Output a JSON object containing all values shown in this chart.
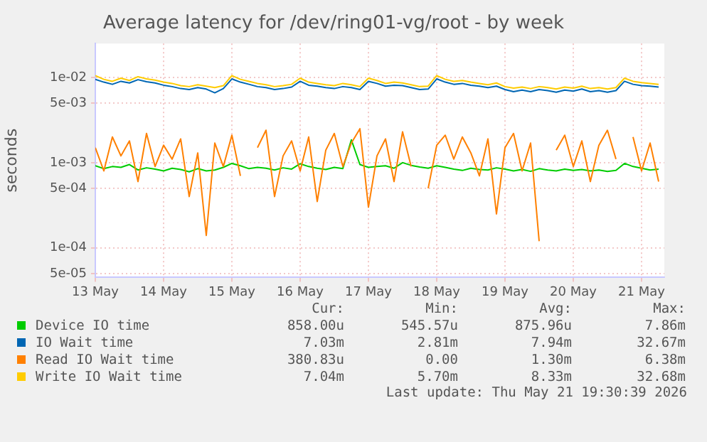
{
  "chart_data": {
    "type": "line",
    "title": "Average latency for /dev/ring01-vg/root - by week",
    "ylabel": "seconds",
    "x": [
      "2026-05-13T00:00",
      "2026-05-13T03:00",
      "2026-05-13T06:00",
      "2026-05-13T09:00",
      "2026-05-13T12:00",
      "2026-05-13T15:00",
      "2026-05-13T18:00",
      "2026-05-13T21:00",
      "2026-05-14T00:00",
      "2026-05-14T03:00",
      "2026-05-14T06:00",
      "2026-05-14T09:00",
      "2026-05-14T12:00",
      "2026-05-14T15:00",
      "2026-05-14T18:00",
      "2026-05-14T21:00",
      "2026-05-15T00:00",
      "2026-05-15T03:00",
      "2026-05-15T06:00",
      "2026-05-15T09:00",
      "2026-05-15T12:00",
      "2026-05-15T15:00",
      "2026-05-15T18:00",
      "2026-05-15T21:00",
      "2026-05-16T00:00",
      "2026-05-16T03:00",
      "2026-05-16T06:00",
      "2026-05-16T09:00",
      "2026-05-16T12:00",
      "2026-05-16T15:00",
      "2026-05-16T18:00",
      "2026-05-16T21:00",
      "2026-05-17T00:00",
      "2026-05-17T03:00",
      "2026-05-17T06:00",
      "2026-05-17T09:00",
      "2026-05-17T12:00",
      "2026-05-17T15:00",
      "2026-05-17T18:00",
      "2026-05-17T21:00",
      "2026-05-18T00:00",
      "2026-05-18T03:00",
      "2026-05-18T06:00",
      "2026-05-18T09:00",
      "2026-05-18T12:00",
      "2026-05-18T15:00",
      "2026-05-18T18:00",
      "2026-05-18T21:00",
      "2026-05-19T00:00",
      "2026-05-19T03:00",
      "2026-05-19T06:00",
      "2026-05-19T09:00",
      "2026-05-19T12:00",
      "2026-05-19T15:00",
      "2026-05-19T18:00",
      "2026-05-19T21:00",
      "2026-05-20T00:00",
      "2026-05-20T03:00",
      "2026-05-20T06:00",
      "2026-05-20T09:00",
      "2026-05-20T12:00",
      "2026-05-20T15:00",
      "2026-05-20T18:00",
      "2026-05-20T21:00",
      "2026-05-21T00:00",
      "2026-05-21T03:00",
      "2026-05-21T06:00"
    ],
    "xlim": [
      "2026-05-13T00:00",
      "2026-05-21T08:00"
    ],
    "xticks": [
      {
        "value": "2026-05-13",
        "label": "13 May"
      },
      {
        "value": "2026-05-14",
        "label": "14 May"
      },
      {
        "value": "2026-05-15",
        "label": "15 May"
      },
      {
        "value": "2026-05-16",
        "label": "16 May"
      },
      {
        "value": "2026-05-17",
        "label": "17 May"
      },
      {
        "value": "2026-05-18",
        "label": "18 May"
      },
      {
        "value": "2026-05-19",
        "label": "19 May"
      },
      {
        "value": "2026-05-20",
        "label": "20 May"
      },
      {
        "value": "2026-05-21",
        "label": "21 May"
      }
    ],
    "log": "y",
    "ylim": [
      4.5e-05,
      0.025
    ],
    "yticks": [
      {
        "value": 5e-05,
        "label": "5e-05"
      },
      {
        "value": 0.0001,
        "label": "1e-04"
      },
      {
        "value": 0.0005,
        "label": "5e-04"
      },
      {
        "value": 0.001,
        "label": "1e-03"
      },
      {
        "value": 0.005,
        "label": "5e-03"
      },
      {
        "value": 0.01,
        "label": "1e-02"
      }
    ],
    "grid": true,
    "legend": "bottom",
    "marker": "none",
    "line_style": "solid",
    "series": [
      {
        "name": "Device IO time",
        "color": "#00cc00",
        "values": [
          0.00092,
          0.00085,
          0.0009,
          0.00088,
          0.00095,
          0.00082,
          0.00087,
          0.00084,
          0.0008,
          0.00086,
          0.00083,
          0.00078,
          0.00085,
          0.0008,
          0.00082,
          0.00088,
          0.00098,
          0.00092,
          0.00085,
          0.00088,
          0.00086,
          0.00082,
          0.00087,
          0.00084,
          0.00097,
          0.0009,
          0.00086,
          0.00083,
          0.00088,
          0.00085,
          0.00185,
          0.00095,
          0.00088,
          0.0009,
          0.00092,
          0.00086,
          0.001,
          0.00093,
          0.00089,
          0.00086,
          0.00092,
          0.00088,
          0.00084,
          0.00081,
          0.00086,
          0.00083,
          0.00082,
          0.00087,
          0.00084,
          0.0008,
          0.00083,
          0.00079,
          0.00085,
          0.00082,
          0.0008,
          0.00084,
          0.00081,
          0.00083,
          0.0008,
          0.00082,
          0.00079,
          0.00081,
          0.00098,
          0.0009,
          0.00086,
          0.00082,
          0.00084
        ]
      },
      {
        "name": "IO Wait time",
        "color": "#0066b3",
        "values": [
          0.0095,
          0.0088,
          0.0083,
          0.009,
          0.0086,
          0.0094,
          0.0089,
          0.0086,
          0.0081,
          0.0078,
          0.0074,
          0.0072,
          0.0076,
          0.0073,
          0.0066,
          0.0074,
          0.0096,
          0.0088,
          0.0083,
          0.0078,
          0.0076,
          0.0072,
          0.0074,
          0.0077,
          0.009,
          0.0081,
          0.0079,
          0.0076,
          0.0074,
          0.0078,
          0.0076,
          0.0072,
          0.009,
          0.0085,
          0.0079,
          0.0081,
          0.008,
          0.0076,
          0.0072,
          0.0073,
          0.0096,
          0.0088,
          0.0083,
          0.0085,
          0.0081,
          0.0079,
          0.0076,
          0.0079,
          0.0072,
          0.0068,
          0.0071,
          0.0068,
          0.0072,
          0.007,
          0.0067,
          0.0071,
          0.0069,
          0.0073,
          0.0068,
          0.007,
          0.0067,
          0.007,
          0.009,
          0.0083,
          0.008,
          0.0079,
          0.0077
        ]
      },
      {
        "name": "Read IO Wait time",
        "color": "#ff8000",
        "values": [
          0.0015,
          0.0008,
          0.002,
          0.0012,
          0.0018,
          0.0006,
          0.0022,
          0.0009,
          0.0016,
          0.0011,
          0.0019,
          0.0004,
          0.0013,
          0.00014,
          0.0017,
          0.0009,
          0.0021,
          0.0007,
          null,
          0.0015,
          0.0024,
          0.0004,
          0.0012,
          0.0018,
          0.0008,
          0.002,
          0.00035,
          0.0014,
          0.0022,
          0.0009,
          0.0017,
          0.0025,
          0.0003,
          0.0012,
          0.0019,
          0.0006,
          0.0023,
          0.0009,
          null,
          0.0005,
          0.0016,
          0.0021,
          0.0011,
          0.002,
          0.0013,
          0.0007,
          0.0019,
          0.00025,
          0.0015,
          0.0022,
          0.0008,
          0.0017,
          0.00012,
          null,
          0.0014,
          0.0021,
          0.0009,
          0.0018,
          0.0006,
          0.0016,
          0.0024,
          0.0011,
          null,
          0.002,
          0.0008,
          0.0017,
          0.0006
        ]
      },
      {
        "name": "Write IO Wait time",
        "color": "#ffcc00",
        "values": [
          0.0105,
          0.0095,
          0.009,
          0.0098,
          0.0092,
          0.0102,
          0.0096,
          0.0093,
          0.0088,
          0.0085,
          0.008,
          0.0078,
          0.0082,
          0.0079,
          0.0076,
          0.008,
          0.0105,
          0.0095,
          0.009,
          0.0085,
          0.0082,
          0.0078,
          0.008,
          0.0083,
          0.0098,
          0.0088,
          0.0085,
          0.0082,
          0.008,
          0.0085,
          0.0082,
          0.0078,
          0.0098,
          0.0092,
          0.0085,
          0.0088,
          0.0086,
          0.0082,
          0.0078,
          0.0079,
          0.0105,
          0.0095,
          0.009,
          0.0092,
          0.0088,
          0.0085,
          0.0082,
          0.0086,
          0.0078,
          0.0075,
          0.0077,
          0.0074,
          0.0078,
          0.0076,
          0.0073,
          0.0077,
          0.0075,
          0.0079,
          0.0074,
          0.0076,
          0.0073,
          0.0076,
          0.0098,
          0.009,
          0.0087,
          0.0085,
          0.0083
        ]
      }
    ],
    "annotations": [
      "Cur:",
      "Min:",
      "Avg:",
      "Max:",
      "858.00u",
      "545.57u",
      "875.96u",
      "7.86m",
      "7.03m",
      "2.81m",
      "7.94m",
      "32.67m",
      "380.83u",
      "0.00",
      "1.30m",
      "6.38m",
      "7.04m",
      "5.70m",
      "8.33m",
      "32.68m",
      "Last update: Thu May 21 19:30:39 2026"
    ]
  }
}
